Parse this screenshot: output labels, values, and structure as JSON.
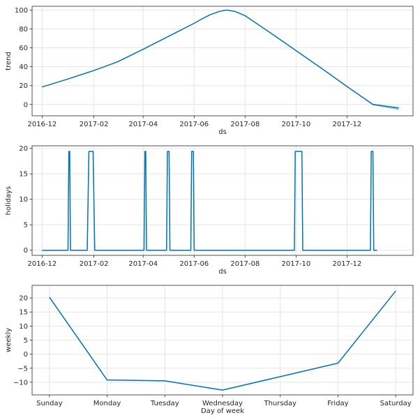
{
  "colors": {
    "line": "#0072B2",
    "grid": "#e5e5e5",
    "axis": "#262626"
  },
  "chart_data": [
    {
      "type": "line",
      "title": "",
      "xlabel": "ds",
      "ylabel": "trend",
      "x_type": "date",
      "xlim": [
        "2016-11-19",
        "2018-02-18"
      ],
      "ylim": [
        -12,
        104
      ],
      "yticks": [
        0,
        20,
        40,
        60,
        80,
        100
      ],
      "xticks": [
        "2016-12-01",
        "2017-02-01",
        "2017-04-01",
        "2017-06-01",
        "2017-08-01",
        "2017-10-01",
        "2017-12-01"
      ],
      "xtick_labels": [
        "2016-12",
        "2017-02",
        "2017-04",
        "2017-06",
        "2017-08",
        "2017-10",
        "2017-12"
      ],
      "grid": true,
      "series": [
        {
          "x": [
            "2016-12-01",
            "2017-01-01",
            "2017-02-01",
            "2017-03-01",
            "2017-04-01",
            "2017-05-01",
            "2017-06-01",
            "2017-06-10",
            "2017-06-20",
            "2017-07-01",
            "2017-07-10",
            "2017-07-20",
            "2017-08-01",
            "2017-09-01",
            "2017-10-01",
            "2017-11-01",
            "2017-12-01",
            "2018-01-01",
            "2018-02-01"
          ],
          "y": [
            18.5,
            27,
            36,
            45,
            58.5,
            72,
            86,
            90.5,
            95,
            98.5,
            100,
            98.5,
            94,
            75.5,
            57,
            38,
            19,
            0,
            -4
          ],
          "lower": [
            18.5,
            27,
            36,
            45,
            58.5,
            72,
            86,
            90.5,
            95,
            98.5,
            100,
            98.5,
            94,
            75.5,
            57,
            38,
            19,
            -0.8,
            -6.2
          ],
          "upper": [
            18.5,
            27,
            36,
            45,
            58.5,
            72,
            86,
            90.5,
            95,
            98.5,
            100,
            98.5,
            94,
            75.5,
            57,
            38,
            19,
            0.8,
            -2.2
          ]
        }
      ]
    },
    {
      "type": "line",
      "title": "",
      "xlabel": "ds",
      "ylabel": "holidays",
      "x_type": "date",
      "xlim": [
        "2016-11-19",
        "2018-02-18"
      ],
      "ylim": [
        -1,
        20.5
      ],
      "yticks": [
        0,
        5,
        10,
        15,
        20
      ],
      "xticks": [
        "2016-12-01",
        "2017-02-01",
        "2017-04-01",
        "2017-06-01",
        "2017-08-01",
        "2017-10-01",
        "2017-12-01"
      ],
      "xtick_labels": [
        "2016-12",
        "2017-02",
        "2017-04",
        "2017-06",
        "2017-08",
        "2017-10",
        "2017-12"
      ],
      "grid": true,
      "series": [
        {
          "x": [
            "2016-12-01",
            "2017-01-01",
            "2017-01-02",
            "2017-01-03",
            "2017-01-04",
            "2017-01-24",
            "2017-01-26",
            "2017-01-31",
            "2017-02-02",
            "2017-04-02",
            "2017-04-03",
            "2017-04-04",
            "2017-04-05",
            "2017-04-29",
            "2017-04-30",
            "2017-05-02",
            "2017-05-03",
            "2017-05-28",
            "2017-05-29",
            "2017-05-31",
            "2017-06-01",
            "2017-09-29",
            "2017-09-30",
            "2017-10-08",
            "2017-10-09",
            "2017-12-29",
            "2017-12-30",
            "2018-01-01",
            "2018-01-02",
            "2018-01-06"
          ],
          "y": [
            0,
            0,
            19.4,
            19.4,
            0,
            0,
            19.4,
            19.4,
            0,
            0,
            19.4,
            19.4,
            0,
            0,
            19.4,
            19.4,
            0,
            0,
            19.4,
            19.4,
            0,
            0,
            19.4,
            19.4,
            0,
            0,
            19.4,
            19.4,
            0,
            0
          ]
        }
      ]
    },
    {
      "type": "line",
      "title": "",
      "xlabel": "Day of week",
      "ylabel": "weekly",
      "x_type": "category",
      "categories": [
        "Sunday",
        "Monday",
        "Tuesday",
        "Wednesday",
        "Thursday",
        "Friday",
        "Saturday"
      ],
      "ylim": [
        -14.5,
        24.5
      ],
      "yticks": [
        -10,
        -5,
        0,
        5,
        10,
        15,
        20
      ],
      "grid": true,
      "series": [
        {
          "values": [
            20.3,
            -9.2,
            -9.5,
            -12.8,
            -8.0,
            -3.2,
            22.5
          ]
        }
      ]
    }
  ]
}
